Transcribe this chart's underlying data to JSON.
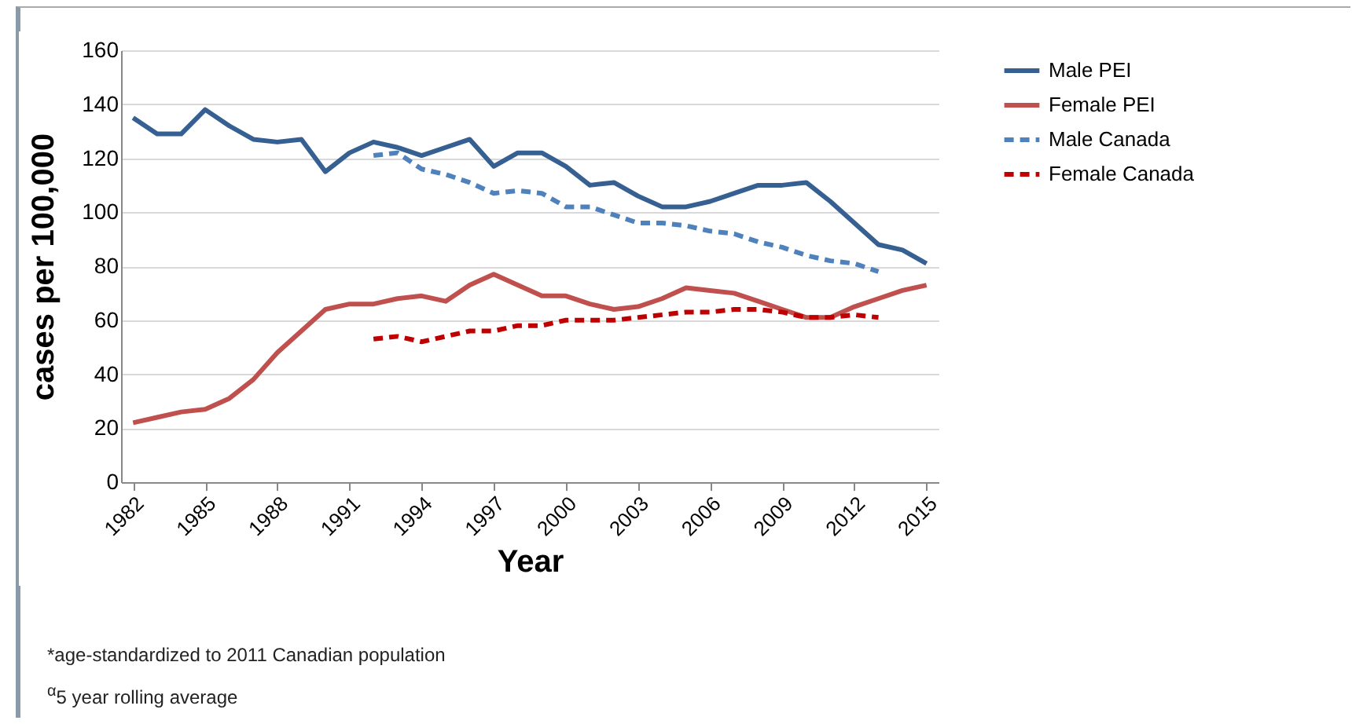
{
  "chart_data": {
    "type": "line",
    "xlabel": "Year",
    "ylabel": "cases per 100,000",
    "xlim": [
      1981.5,
      2015.5
    ],
    "xticks": [
      1982,
      1985,
      1988,
      1991,
      1994,
      1997,
      2000,
      2003,
      2006,
      2009,
      2012,
      2015
    ],
    "ylim": [
      0,
      160
    ],
    "yticks": [
      0,
      20,
      40,
      60,
      80,
      100,
      120,
      140,
      160
    ],
    "grid": "y",
    "legend": "right",
    "series": [
      {
        "name": "Male PEI",
        "color": "#376092",
        "line_style": "solid",
        "x": [
          1982,
          1983,
          1984,
          1985,
          1986,
          1987,
          1988,
          1989,
          1990,
          1991,
          1992,
          1993,
          1994,
          1995,
          1996,
          1997,
          1998,
          1999,
          2000,
          2001,
          2002,
          2003,
          2004,
          2005,
          2006,
          2007,
          2008,
          2009,
          2010,
          2011,
          2012,
          2013,
          2014,
          2015
        ],
        "values": [
          135,
          129,
          129,
          138,
          132,
          127,
          126,
          127,
          115,
          122,
          126,
          124,
          121,
          124,
          127,
          117,
          122,
          122,
          117,
          110,
          111,
          106,
          102,
          102,
          104,
          107,
          110,
          110,
          111,
          104,
          96,
          88,
          86,
          81
        ]
      },
      {
        "name": "Female PEI",
        "color": "#c0504d",
        "line_style": "solid",
        "x": [
          1982,
          1983,
          1984,
          1985,
          1986,
          1987,
          1988,
          1989,
          1990,
          1991,
          1992,
          1993,
          1994,
          1995,
          1996,
          1997,
          1998,
          1999,
          2000,
          2001,
          2002,
          2003,
          2004,
          2005,
          2006,
          2007,
          2008,
          2009,
          2010,
          2011,
          2012,
          2013,
          2014,
          2015
        ],
        "values": [
          22,
          24,
          26,
          27,
          31,
          38,
          48,
          56,
          64,
          66,
          66,
          68,
          69,
          67,
          73,
          77,
          73,
          69,
          69,
          66,
          64,
          65,
          68,
          72,
          71,
          70,
          67,
          64,
          61,
          61,
          65,
          68,
          71,
          73
        ]
      },
      {
        "name": "Male Canada",
        "color": "#4f81bd",
        "line_style": "dashed",
        "x": [
          1992,
          1993,
          1994,
          1995,
          1996,
          1997,
          1998,
          1999,
          2000,
          2001,
          2002,
          2003,
          2004,
          2005,
          2006,
          2007,
          2008,
          2009,
          2010,
          2011,
          2012,
          2013
        ],
        "values": [
          121,
          122,
          116,
          114,
          111,
          107,
          108,
          107,
          102,
          102,
          99,
          96,
          96,
          95,
          93,
          92,
          89,
          87,
          84,
          82,
          81,
          78
        ]
      },
      {
        "name": "Female Canada",
        "color": "#c00000",
        "line_style": "dashed",
        "x": [
          1992,
          1993,
          1994,
          1995,
          1996,
          1997,
          1998,
          1999,
          2000,
          2001,
          2002,
          2003,
          2004,
          2005,
          2006,
          2007,
          2008,
          2009,
          2010,
          2011,
          2012,
          2013
        ],
        "values": [
          53,
          54,
          52,
          54,
          56,
          56,
          58,
          58,
          60,
          60,
          60,
          61,
          62,
          63,
          63,
          64,
          64,
          63,
          61,
          61,
          62,
          61
        ]
      }
    ],
    "annotations": [
      "*age-standardized to 2011 Canadian population",
      "$^{α}$5 year rolling average"
    ]
  }
}
